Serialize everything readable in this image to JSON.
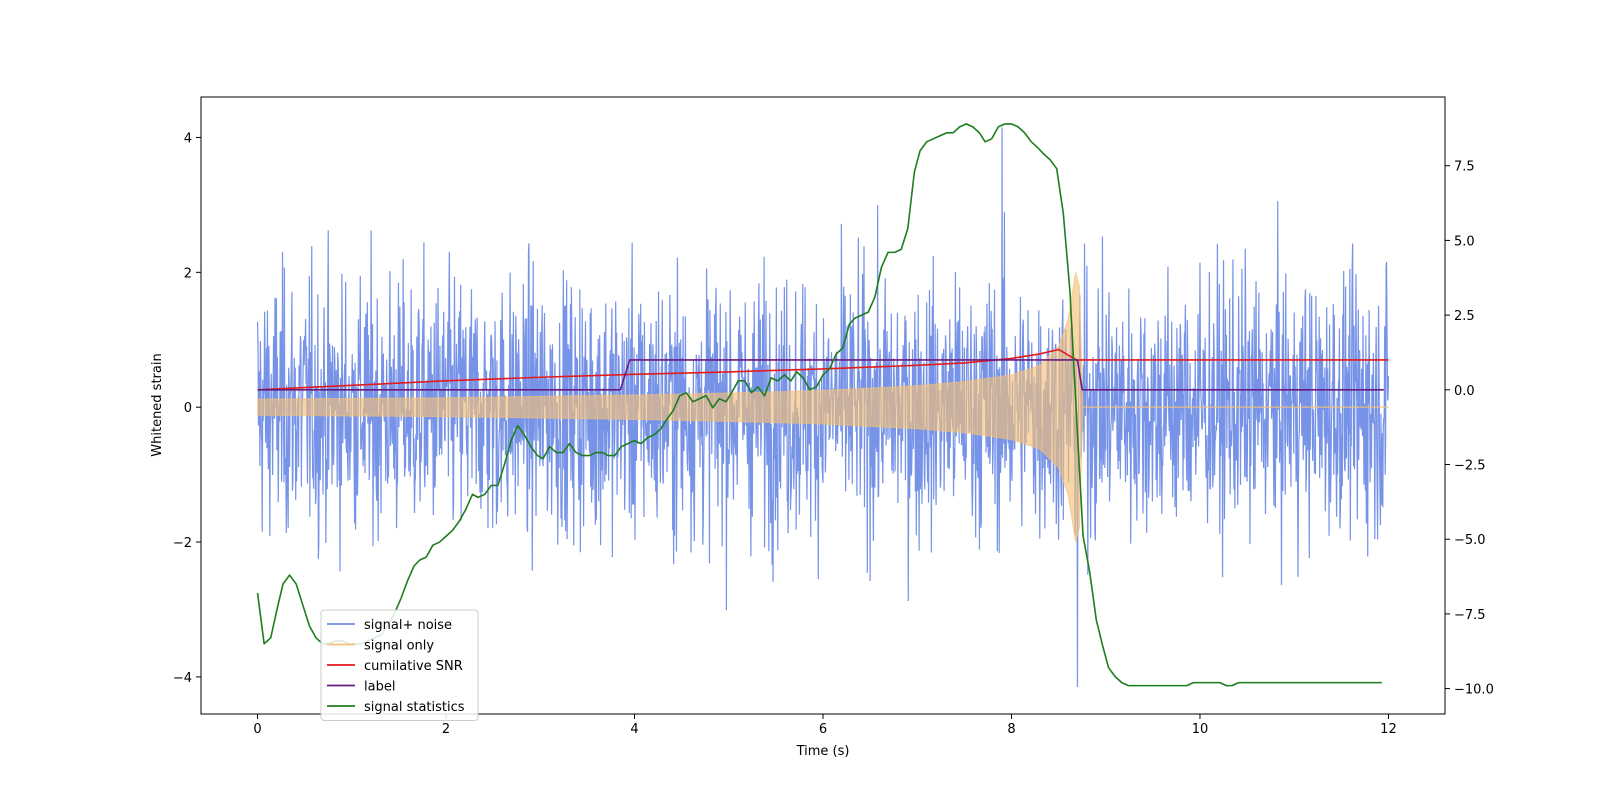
{
  "chart_data": {
    "type": "line",
    "xlabel": "Time (s)",
    "ylabel": "Whitened strain",
    "xlim": [
      -0.6,
      12.6
    ],
    "ylim": [
      -4.55,
      4.6
    ],
    "y2lim": [
      -10.85,
      9.8
    ],
    "x_ticks": [
      0,
      2,
      4,
      6,
      8,
      10,
      12
    ],
    "x_tick_labels": [
      "0",
      "2",
      "4",
      "6",
      "8",
      "10",
      "12"
    ],
    "y_ticks": [
      4,
      2,
      0,
      -2,
      -4
    ],
    "y_tick_labels": [
      "4",
      "2",
      "0",
      "−2",
      "−4"
    ],
    "y2_ticks": [
      7.5,
      5.0,
      2.5,
      0.0,
      -2.5,
      -5.0,
      -7.5,
      -10.0
    ],
    "y2_tick_labels": [
      "7.5",
      "5.0",
      "2.5",
      "0.0",
      "−2.5",
      "−5.0",
      "−7.5",
      "−10.0"
    ],
    "legend_position": "lower-left",
    "legend": [
      {
        "label": "signal+ noise",
        "color": "#6f8de6"
      },
      {
        "label": "signal only",
        "color": "#f5c07a"
      },
      {
        "label": "cumilative SNR",
        "color": "#e41a1c"
      },
      {
        "label": "label",
        "color": "#6a1b7f"
      },
      {
        "label": "signal statistics",
        "color": "#1e7d1e"
      }
    ],
    "series": [
      {
        "name": "signal+ noise",
        "axis": "left",
        "color": "#6f8de6",
        "x_range": [
          0,
          12
        ],
        "mean": 0.0,
        "typical_peak_amplitude": [
          2.5,
          -2.5
        ],
        "max": 4.15,
        "min": -4.15
      },
      {
        "name": "signal only",
        "axis": "left",
        "color": "#f5c07a",
        "envelope": {
          "x": [
            0,
            1,
            2,
            3,
            4,
            5,
            6,
            7,
            7.5,
            8,
            8.3,
            8.5,
            8.6,
            8.68,
            8.72,
            8.76
          ],
          "upper": [
            0.12,
            0.13,
            0.14,
            0.16,
            0.18,
            0.21,
            0.25,
            0.32,
            0.38,
            0.48,
            0.62,
            0.9,
            1.3,
            2.0,
            1.8,
            0.0
          ],
          "lower": [
            -0.12,
            -0.13,
            -0.14,
            -0.16,
            -0.18,
            -0.21,
            -0.25,
            -0.32,
            -0.38,
            -0.48,
            -0.62,
            -0.9,
            -1.3,
            -2.0,
            -1.8,
            0.0
          ]
        },
        "after_merger": {
          "x": [
            8.76,
            12
          ],
          "y": [
            0,
            0
          ]
        }
      },
      {
        "name": "cumilative SNR",
        "axis": "right",
        "color": "#e41a1c",
        "x": [
          0,
          1,
          2,
          3,
          4,
          5,
          6,
          7,
          7.5,
          8,
          8.3,
          8.5,
          8.7,
          8.72,
          12
        ],
        "y": [
          0.0,
          0.15,
          0.3,
          0.42,
          0.52,
          0.6,
          0.7,
          0.82,
          0.9,
          1.05,
          1.2,
          1.35,
          0.98,
          1.0,
          1.0
        ]
      },
      {
        "name": "label",
        "axis": "right",
        "color": "#6a1b7f",
        "x": [
          0,
          3.85,
          3.95,
          8.7,
          8.75,
          11.95
        ],
        "y": [
          0,
          0,
          1,
          1,
          0,
          0
        ]
      },
      {
        "name": "signal statistics",
        "axis": "right",
        "color": "#1e7d1e",
        "x": [
          0.0,
          0.07,
          0.14,
          0.21,
          0.27,
          0.34,
          0.41,
          0.48,
          0.55,
          0.62,
          0.69,
          0.76,
          0.83,
          0.9,
          0.97,
          1.03,
          1.1,
          1.17,
          1.24,
          1.31,
          1.38,
          1.45,
          1.52,
          1.59,
          1.66,
          1.72,
          1.79,
          1.86,
          1.93,
          2.0,
          2.07,
          2.14,
          2.21,
          2.28,
          2.34,
          2.41,
          2.48,
          2.55,
          2.62,
          2.69,
          2.76,
          2.83,
          2.9,
          2.97,
          3.03,
          3.1,
          3.17,
          3.24,
          3.31,
          3.38,
          3.45,
          3.52,
          3.59,
          3.66,
          3.72,
          3.79,
          3.86,
          3.93,
          4.0,
          4.07,
          4.14,
          4.21,
          4.28,
          4.34,
          4.41,
          4.48,
          4.55,
          4.62,
          4.69,
          4.76,
          4.83,
          4.9,
          4.97,
          5.03,
          5.1,
          5.17,
          5.24,
          5.31,
          5.38,
          5.45,
          5.52,
          5.59,
          5.66,
          5.72,
          5.79,
          5.86,
          5.93,
          6.0,
          6.07,
          6.14,
          6.21,
          6.28,
          6.34,
          6.41,
          6.48,
          6.55,
          6.62,
          6.69,
          6.76,
          6.83,
          6.9,
          6.97,
          7.03,
          7.1,
          7.17,
          7.24,
          7.31,
          7.38,
          7.45,
          7.52,
          7.59,
          7.66,
          7.72,
          7.79,
          7.86,
          7.93,
          8.0,
          8.07,
          8.14,
          8.21,
          8.28,
          8.34,
          8.41,
          8.48,
          8.55,
          8.62,
          8.69,
          8.76,
          8.83,
          8.9,
          8.97,
          9.03,
          9.1,
          9.17,
          9.24,
          9.31,
          9.38,
          9.45,
          9.52,
          9.59,
          9.66,
          9.72,
          9.79,
          9.86,
          9.93,
          10.0,
          10.07,
          10.14,
          10.21,
          10.28,
          10.34,
          10.41,
          10.48,
          10.55,
          10.62,
          10.69,
          10.76,
          10.83,
          10.9,
          10.97,
          11.03,
          11.1,
          11.17,
          11.24,
          11.31,
          11.38,
          11.45,
          11.52,
          11.59,
          11.66,
          11.72,
          11.79,
          11.86,
          11.93
        ],
        "y": [
          -6.8,
          -8.5,
          -8.3,
          -7.3,
          -6.5,
          -6.2,
          -6.5,
          -7.2,
          -7.9,
          -8.3,
          -8.5,
          -8.5,
          -8.4,
          -8.4,
          -8.5,
          -8.5,
          -8.5,
          -8.4,
          -8.3,
          -8.2,
          -7.9,
          -7.5,
          -7.0,
          -6.4,
          -5.9,
          -5.7,
          -5.6,
          -5.2,
          -5.1,
          -4.9,
          -4.7,
          -4.4,
          -4.0,
          -3.5,
          -3.6,
          -3.5,
          -3.2,
          -3.2,
          -2.5,
          -1.7,
          -1.2,
          -1.5,
          -1.9,
          -2.2,
          -2.3,
          -1.9,
          -2.1,
          -2.1,
          -1.8,
          -2.1,
          -2.2,
          -2.2,
          -2.1,
          -2.1,
          -2.2,
          -2.2,
          -1.9,
          -1.8,
          -1.7,
          -1.8,
          -1.6,
          -1.5,
          -1.3,
          -1.0,
          -0.7,
          -0.2,
          -0.1,
          -0.4,
          -0.3,
          -0.2,
          -0.6,
          -0.3,
          -0.4,
          -0.1,
          0.3,
          0.3,
          -0.1,
          0.1,
          -0.2,
          0.4,
          0.3,
          0.5,
          0.3,
          0.6,
          0.4,
          0.0,
          0.1,
          0.5,
          0.7,
          1.2,
          1.4,
          2.2,
          2.4,
          2.5,
          2.6,
          3.1,
          4.1,
          4.6,
          4.6,
          4.7,
          5.4,
          7.3,
          8.0,
          8.3,
          8.4,
          8.5,
          8.6,
          8.6,
          8.8,
          8.9,
          8.8,
          8.6,
          8.3,
          8.4,
          8.8,
          8.9,
          8.9,
          8.8,
          8.6,
          8.3,
          8.1,
          7.9,
          7.7,
          7.4,
          5.9,
          3.3,
          -0.9,
          -4.9,
          -6.1,
          -7.7,
          -8.6,
          -9.3,
          -9.6,
          -9.8,
          -9.9,
          -9.9,
          -9.9,
          -9.9,
          -9.9,
          -9.9,
          -9.9,
          -9.9,
          -9.9,
          -9.9,
          -9.8,
          -9.8,
          -9.8,
          -9.8,
          -9.8,
          -9.9,
          -9.9,
          -9.8,
          -9.8,
          -9.8,
          -9.8,
          -9.8,
          -9.8,
          -9.8,
          -9.8,
          -9.8,
          -9.8,
          -9.8,
          -9.8,
          -9.8,
          -9.8,
          -9.8,
          -9.8,
          -9.8,
          -9.8,
          -9.8,
          -9.8,
          -9.8,
          -9.8,
          -9.8
        ]
      }
    ]
  }
}
